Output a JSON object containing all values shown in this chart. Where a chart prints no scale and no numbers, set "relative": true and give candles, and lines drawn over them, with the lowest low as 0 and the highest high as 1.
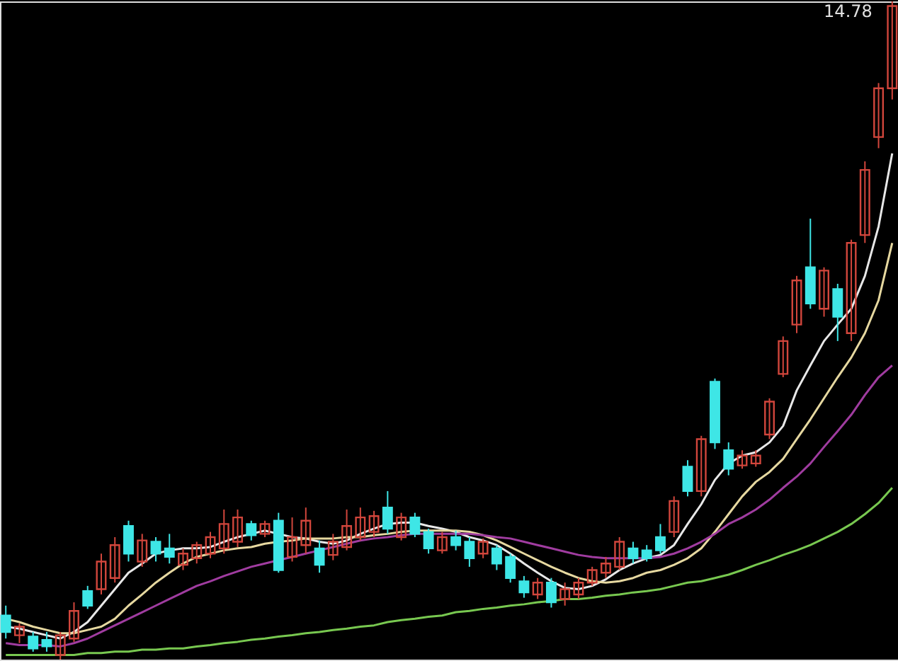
{
  "chart_data": {
    "type": "candlestick",
    "relative": true,
    "categories": [
      null,
      null,
      null,
      null,
      null,
      null,
      null,
      null,
      null,
      null,
      null,
      null,
      null,
      null,
      null,
      null,
      null,
      null,
      null,
      null,
      null,
      null,
      null,
      null,
      null,
      null,
      null,
      null,
      null,
      null,
      null,
      null,
      null,
      null,
      null,
      null,
      null,
      null,
      null,
      null,
      null,
      null,
      null,
      null,
      null,
      null,
      null,
      null,
      null,
      null,
      null,
      null,
      null,
      null,
      null,
      null,
      null,
      null,
      null,
      null,
      null,
      null,
      null,
      null,
      null,
      null
    ],
    "ohlc": [
      [
        0.067,
        0.082,
        0.032,
        0.042
      ],
      [
        0.037,
        0.055,
        0.025,
        0.05
      ],
      [
        0.035,
        0.042,
        0.012,
        0.017
      ],
      [
        0.03,
        0.042,
        0.012,
        0.02
      ],
      [
        0.007,
        0.042,
        0,
        0.037
      ],
      [
        0.032,
        0.087,
        0.027,
        0.074
      ],
      [
        0.104,
        0.112,
        0.077,
        0.082
      ],
      [
        0.107,
        0.161,
        0.099,
        0.149
      ],
      [
        0.124,
        0.186,
        0.117,
        0.174
      ],
      [
        0.203,
        0.211,
        0.149,
        0.161
      ],
      [
        0.149,
        0.191,
        0.141,
        0.181
      ],
      [
        0.179,
        0.186,
        0.149,
        0.161
      ],
      [
        0.169,
        0.191,
        0.146,
        0.156
      ],
      [
        0.144,
        0.169,
        0.136,
        0.161
      ],
      [
        0.154,
        0.179,
        0.146,
        0.174
      ],
      [
        0.161,
        0.194,
        0.154,
        0.186
      ],
      [
        0.169,
        0.228,
        0.161,
        0.206
      ],
      [
        0.179,
        0.228,
        0.171,
        0.216
      ],
      [
        0.206,
        0.211,
        0.181,
        0.189
      ],
      [
        0.191,
        0.211,
        0.186,
        0.206
      ],
      [
        0.211,
        0.223,
        0.132,
        0.136
      ],
      [
        0.156,
        0.216,
        0.149,
        0.186
      ],
      [
        0.174,
        0.231,
        0.161,
        0.211
      ],
      [
        0.169,
        0.181,
        0.132,
        0.144
      ],
      [
        0.159,
        0.191,
        0.151,
        0.179
      ],
      [
        0.171,
        0.228,
        0.166,
        0.203
      ],
      [
        0.186,
        0.231,
        0.181,
        0.216
      ],
      [
        0.194,
        0.226,
        0.186,
        0.218
      ],
      [
        0.231,
        0.256,
        0.191,
        0.199
      ],
      [
        0.186,
        0.223,
        0.181,
        0.216
      ],
      [
        0.216,
        0.223,
        0.186,
        0.191
      ],
      [
        0.194,
        0.199,
        0.161,
        0.169
      ],
      [
        0.166,
        0.194,
        0.161,
        0.186
      ],
      [
        0.186,
        0.196,
        0.166,
        0.174
      ],
      [
        0.179,
        0.186,
        0.141,
        0.154
      ],
      [
        0.161,
        0.184,
        0.154,
        0.179
      ],
      [
        0.169,
        0.174,
        0.136,
        0.146
      ],
      [
        0.156,
        0.161,
        0.117,
        0.124
      ],
      [
        0.119,
        0.127,
        0.094,
        0.102
      ],
      [
        0.099,
        0.124,
        0.092,
        0.117
      ],
      [
        0.117,
        0.124,
        0.079,
        0.087
      ],
      [
        0.092,
        0.117,
        0.082,
        0.107
      ],
      [
        0.099,
        0.124,
        0.092,
        0.117
      ],
      [
        0.117,
        0.141,
        0.112,
        0.136
      ],
      [
        0.132,
        0.156,
        0.124,
        0.146
      ],
      [
        0.141,
        0.186,
        0.136,
        0.179
      ],
      [
        0.169,
        0.179,
        0.146,
        0.154
      ],
      [
        0.166,
        0.174,
        0.149,
        0.154
      ],
      [
        0.186,
        0.206,
        0.161,
        0.166
      ],
      [
        0.194,
        0.248,
        0.186,
        0.241
      ],
      [
        0.293,
        0.303,
        0.248,
        0.256
      ],
      [
        0.256,
        0.34,
        0.248,
        0.335
      ],
      [
        0.422,
        0.427,
        0.32,
        0.33
      ],
      [
        0.318,
        0.33,
        0.28,
        0.29
      ],
      [
        0.295,
        0.318,
        0.29,
        0.31
      ],
      [
        0.298,
        0.318,
        0.293,
        0.31
      ],
      [
        0.342,
        0.397,
        0.335,
        0.392
      ],
      [
        0.434,
        0.491,
        0.429,
        0.484
      ],
      [
        0.509,
        0.583,
        0.496,
        0.576
      ],
      [
        0.596,
        0.67,
        0.533,
        0.541
      ],
      [
        0.533,
        0.596,
        0.521,
        0.591
      ],
      [
        0.563,
        0.571,
        0.484,
        0.521
      ],
      [
        0.496,
        0.638,
        0.484,
        0.633
      ],
      [
        0.645,
        0.757,
        0.633,
        0.744
      ],
      [
        0.794,
        0.876,
        0.777,
        0.868
      ],
      [
        0.868,
        1.0,
        0.851,
        0.993
      ]
    ],
    "colors": [
      "#3ee6e6",
      "#d2463c",
      "#3ee6e6",
      "#3ee6e6",
      "#d2463c",
      "#d2463c",
      "#3ee6e6",
      "#d2463c",
      "#d2463c",
      "#3ee6e6",
      "#d2463c",
      "#3ee6e6",
      "#3ee6e6",
      "#d2463c",
      "#d2463c",
      "#d2463c",
      "#d2463c",
      "#d2463c",
      "#3ee6e6",
      "#d2463c",
      "#3ee6e6",
      "#d2463c",
      "#d2463c",
      "#3ee6e6",
      "#d2463c",
      "#d2463c",
      "#d2463c",
      "#d2463c",
      "#3ee6e6",
      "#d2463c",
      "#3ee6e6",
      "#3ee6e6",
      "#d2463c",
      "#3ee6e6",
      "#3ee6e6",
      "#d2463c",
      "#3ee6e6",
      "#3ee6e6",
      "#3ee6e6",
      "#d2463c",
      "#3ee6e6",
      "#d2463c",
      "#d2463c",
      "#d2463c",
      "#d2463c",
      "#d2463c",
      "#3ee6e6",
      "#3ee6e6",
      "#3ee6e6",
      "#d2463c",
      "#3ee6e6",
      "#d2463c",
      "#3ee6e6",
      "#3ee6e6",
      "#d2463c",
      "#d2463c",
      "#d2463c",
      "#d2463c",
      "#d2463c",
      "#3ee6e6",
      "#d2463c",
      "#3ee6e6",
      "#d2463c",
      "#d2463c",
      "#d2463c",
      "#d2463c"
    ],
    "series": [
      {
        "type": "line",
        "color": "#e8e8e8",
        "values": [
          0.05,
          0.047,
          0.042,
          0.037,
          0.032,
          0.042,
          0.057,
          0.082,
          0.107,
          0.132,
          0.146,
          0.161,
          0.166,
          0.169,
          0.169,
          0.171,
          0.179,
          0.186,
          0.191,
          0.196,
          0.191,
          0.186,
          0.184,
          0.179,
          0.176,
          0.181,
          0.191,
          0.199,
          0.206,
          0.208,
          0.208,
          0.203,
          0.199,
          0.194,
          0.186,
          0.181,
          0.174,
          0.161,
          0.146,
          0.132,
          0.119,
          0.109,
          0.107,
          0.112,
          0.122,
          0.136,
          0.146,
          0.154,
          0.159,
          0.174,
          0.206,
          0.236,
          0.273,
          0.298,
          0.31,
          0.315,
          0.33,
          0.355,
          0.409,
          0.447,
          0.484,
          0.509,
          0.533,
          0.583,
          0.658,
          0.769
        ]
      },
      {
        "type": "line",
        "color": "#e6d8a0",
        "values": [
          0.062,
          0.057,
          0.05,
          0.045,
          0.04,
          0.04,
          0.045,
          0.05,
          0.062,
          0.082,
          0.099,
          0.117,
          0.132,
          0.146,
          0.156,
          0.161,
          0.166,
          0.169,
          0.171,
          0.176,
          0.179,
          0.181,
          0.184,
          0.184,
          0.184,
          0.186,
          0.186,
          0.189,
          0.191,
          0.194,
          0.196,
          0.196,
          0.196,
          0.196,
          0.194,
          0.189,
          0.181,
          0.171,
          0.161,
          0.151,
          0.141,
          0.132,
          0.124,
          0.119,
          0.117,
          0.119,
          0.124,
          0.132,
          0.136,
          0.144,
          0.154,
          0.169,
          0.194,
          0.221,
          0.248,
          0.27,
          0.285,
          0.305,
          0.335,
          0.365,
          0.397,
          0.429,
          0.459,
          0.496,
          0.546,
          0.633
        ]
      },
      {
        "type": "line",
        "color": "#a03ca0",
        "values": [
          0.025,
          0.022,
          0.022,
          0.022,
          0.02,
          0.025,
          0.032,
          0.042,
          0.052,
          0.062,
          0.072,
          0.082,
          0.092,
          0.102,
          0.112,
          0.119,
          0.127,
          0.134,
          0.141,
          0.146,
          0.151,
          0.156,
          0.161,
          0.166,
          0.171,
          0.176,
          0.181,
          0.184,
          0.186,
          0.189,
          0.191,
          0.191,
          0.191,
          0.191,
          0.191,
          0.189,
          0.186,
          0.184,
          0.179,
          0.174,
          0.169,
          0.164,
          0.159,
          0.156,
          0.154,
          0.154,
          0.154,
          0.154,
          0.156,
          0.161,
          0.169,
          0.179,
          0.191,
          0.206,
          0.216,
          0.228,
          0.243,
          0.261,
          0.278,
          0.298,
          0.323,
          0.347,
          0.372,
          0.402,
          0.429,
          0.447
        ]
      },
      {
        "type": "line",
        "color": "#78c850",
        "values": [
          0.007,
          0.007,
          0.007,
          0.007,
          0.007,
          0.007,
          0.01,
          0.01,
          0.012,
          0.012,
          0.015,
          0.015,
          0.017,
          0.017,
          0.02,
          0.022,
          0.025,
          0.027,
          0.03,
          0.032,
          0.035,
          0.037,
          0.04,
          0.042,
          0.045,
          0.047,
          0.05,
          0.052,
          0.057,
          0.06,
          0.062,
          0.065,
          0.067,
          0.072,
          0.074,
          0.077,
          0.079,
          0.082,
          0.084,
          0.087,
          0.089,
          0.092,
          0.092,
          0.094,
          0.097,
          0.099,
          0.102,
          0.104,
          0.107,
          0.112,
          0.117,
          0.119,
          0.124,
          0.129,
          0.136,
          0.144,
          0.151,
          0.159,
          0.166,
          0.174,
          0.184,
          0.194,
          0.206,
          0.221,
          0.238,
          0.261
        ]
      }
    ],
    "annotations": [
      "14.78"
    ]
  }
}
